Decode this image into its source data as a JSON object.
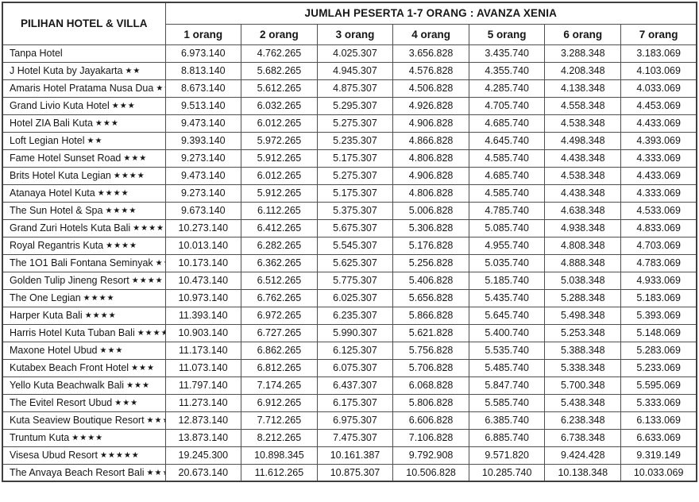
{
  "header": {
    "hotel_column_label": "PILIHAN HOTEL & VILLA",
    "group_title": "JUMLAH PESERTA 1-7 ORANG : AVANZA XENIA",
    "person_cols": [
      "1 orang",
      "2 orang",
      "3 orang",
      "4 orang",
      "5 orang",
      "6 orang",
      "7 orang"
    ]
  },
  "table": {
    "rows": [
      {
        "hotel": "Tanpa Hotel",
        "stars": "",
        "prices": [
          "6.973.140",
          "4.762.265",
          "4.025.307",
          "3.656.828",
          "3.435.740",
          "3.288.348",
          "3.183.069"
        ]
      },
      {
        "hotel": "J Hotel Kuta by Jayakarta",
        "stars": "★★",
        "prices": [
          "8.813.140",
          "5.682.265",
          "4.945.307",
          "4.576.828",
          "4.355.740",
          "4.208.348",
          "4.103.069"
        ]
      },
      {
        "hotel": "Amaris Hotel Pratama Nusa Dua",
        "stars": "★★",
        "prices": [
          "8.673.140",
          "5.612.265",
          "4.875.307",
          "4.506.828",
          "4.285.740",
          "4.138.348",
          "4.033.069"
        ]
      },
      {
        "hotel": "Grand Livio Kuta Hotel",
        "stars": "★★★",
        "prices": [
          "9.513.140",
          "6.032.265",
          "5.295.307",
          "4.926.828",
          "4.705.740",
          "4.558.348",
          "4.453.069"
        ]
      },
      {
        "hotel": "Hotel ZIA Bali Kuta",
        "stars": "★★★",
        "prices": [
          "9.473.140",
          "6.012.265",
          "5.275.307",
          "4.906.828",
          "4.685.740",
          "4.538.348",
          "4.433.069"
        ]
      },
      {
        "hotel": "Loft Legian Hotel",
        "stars": "★★",
        "prices": [
          "9.393.140",
          "5.972.265",
          "5.235.307",
          "4.866.828",
          "4.645.740",
          "4.498.348",
          "4.393.069"
        ]
      },
      {
        "hotel": "Fame Hotel Sunset Road",
        "stars": "★★★",
        "prices": [
          "9.273.140",
          "5.912.265",
          "5.175.307",
          "4.806.828",
          "4.585.740",
          "4.438.348",
          "4.333.069"
        ]
      },
      {
        "hotel": "Brits Hotel Kuta Legian",
        "stars": "★★★★",
        "prices": [
          "9.473.140",
          "6.012.265",
          "5.275.307",
          "4.906.828",
          "4.685.740",
          "4.538.348",
          "4.433.069"
        ]
      },
      {
        "hotel": "Atanaya Hotel Kuta",
        "stars": "★★★★",
        "prices": [
          "9.273.140",
          "5.912.265",
          "5.175.307",
          "4.806.828",
          "4.585.740",
          "4.438.348",
          "4.333.069"
        ]
      },
      {
        "hotel": "The Sun Hotel & Spa",
        "stars": "★★★★",
        "prices": [
          "9.673.140",
          "6.112.265",
          "5.375.307",
          "5.006.828",
          "4.785.740",
          "4.638.348",
          "4.533.069"
        ]
      },
      {
        "hotel": "Grand Zuri Hotels Kuta Bali",
        "stars": "★★★★",
        "prices": [
          "10.273.140",
          "6.412.265",
          "5.675.307",
          "5.306.828",
          "5.085.740",
          "4.938.348",
          "4.833.069"
        ]
      },
      {
        "hotel": "Royal Regantris Kuta",
        "stars": "★★★★",
        "prices": [
          "10.013.140",
          "6.282.265",
          "5.545.307",
          "5.176.828",
          "4.955.740",
          "4.808.348",
          "4.703.069"
        ]
      },
      {
        "hotel": "The 1O1 Bali Fontana Seminyak",
        "stars": "★★★★",
        "prices": [
          "10.173.140",
          "6.362.265",
          "5.625.307",
          "5.256.828",
          "5.035.740",
          "4.888.348",
          "4.783.069"
        ]
      },
      {
        "hotel": "Golden Tulip Jineng Resort",
        "stars": "★★★★",
        "prices": [
          "10.473.140",
          "6.512.265",
          "5.775.307",
          "5.406.828",
          "5.185.740",
          "5.038.348",
          "4.933.069"
        ]
      },
      {
        "hotel": "The One Legian",
        "stars": "★★★★",
        "prices": [
          "10.973.140",
          "6.762.265",
          "6.025.307",
          "5.656.828",
          "5.435.740",
          "5.288.348",
          "5.183.069"
        ]
      },
      {
        "hotel": "Harper Kuta Bali",
        "stars": "★★★★",
        "prices": [
          "11.393.140",
          "6.972.265",
          "6.235.307",
          "5.866.828",
          "5.645.740",
          "5.498.348",
          "5.393.069"
        ]
      },
      {
        "hotel": "Harris Hotel Kuta Tuban Bali",
        "stars": "★★★★",
        "prices": [
          "10.903.140",
          "6.727.265",
          "5.990.307",
          "5.621.828",
          "5.400.740",
          "5.253.348",
          "5.148.069"
        ]
      },
      {
        "hotel": "Maxone Hotel Ubud",
        "stars": "★★★",
        "prices": [
          "11.173.140",
          "6.862.265",
          "6.125.307",
          "5.756.828",
          "5.535.740",
          "5.388.348",
          "5.283.069"
        ]
      },
      {
        "hotel": "Kutabex Beach Front Hotel",
        "stars": "★★★",
        "prices": [
          "11.073.140",
          "6.812.265",
          "6.075.307",
          "5.706.828",
          "5.485.740",
          "5.338.348",
          "5.233.069"
        ]
      },
      {
        "hotel": "Yello Kuta Beachwalk Bali",
        "stars": "★★★",
        "prices": [
          "11.797.140",
          "7.174.265",
          "6.437.307",
          "6.068.828",
          "5.847.740",
          "5.700.348",
          "5.595.069"
        ]
      },
      {
        "hotel": "The Evitel Resort Ubud",
        "stars": "★★★",
        "prices": [
          "11.273.140",
          "6.912.265",
          "6.175.307",
          "5.806.828",
          "5.585.740",
          "5.438.348",
          "5.333.069"
        ]
      },
      {
        "hotel": "Kuta Seaview Boutique Resort",
        "stars": "★★★★",
        "prices": [
          "12.873.140",
          "7.712.265",
          "6.975.307",
          "6.606.828",
          "6.385.740",
          "6.238.348",
          "6.133.069"
        ]
      },
      {
        "hotel": "Truntum Kuta",
        "stars": "★★★★",
        "prices": [
          "13.873.140",
          "8.212.265",
          "7.475.307",
          "7.106.828",
          "6.885.740",
          "6.738.348",
          "6.633.069"
        ]
      },
      {
        "hotel": "Visesa Ubud Resort",
        "stars": "★★★★★",
        "prices": [
          "19.245.300",
          "10.898.345",
          "10.161.387",
          "9.792.908",
          "9.571.820",
          "9.424.428",
          "9.319.149"
        ]
      },
      {
        "hotel": "The Anvaya Beach Resort Bali",
        "stars": "★★★★★",
        "prices": [
          "20.673.140",
          "11.612.265",
          "10.875.307",
          "10.506.828",
          "10.285.740",
          "10.138.348",
          "10.033.069"
        ]
      }
    ]
  },
  "colors": {
    "background": "#ffffff",
    "border": "#4f4f4f",
    "text": "#161616"
  }
}
